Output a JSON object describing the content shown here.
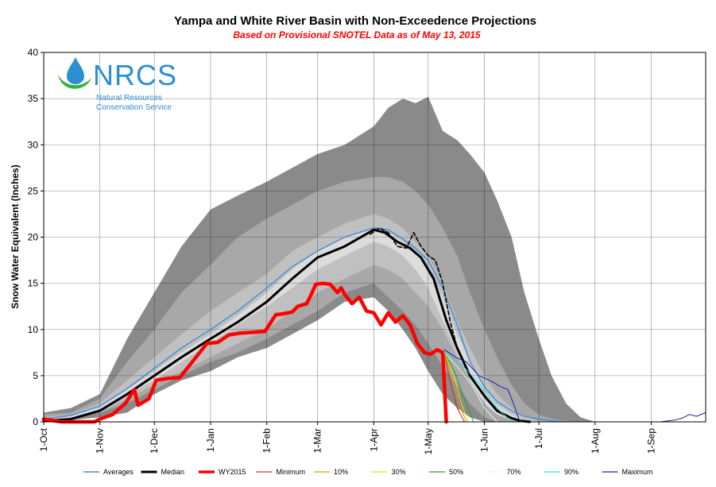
{
  "chart_data": {
    "type": "area",
    "title": "Yampa and White River Basin with Non-Exceedence Projections",
    "subtitle": "Based on Provisional SNOTEL Data as of May 13, 2015",
    "xlabel": "",
    "ylabel": "Snow Water Equivalent (Inches)",
    "ylim": [
      0,
      40
    ],
    "yticks": [
      0,
      5,
      10,
      15,
      20,
      25,
      30,
      35,
      40
    ],
    "xlim_days": [
      0,
      365
    ],
    "xticks": [
      {
        "label": "1-Oct",
        "day": 0
      },
      {
        "label": "1-Nov",
        "day": 31
      },
      {
        "label": "1-Dec",
        "day": 61
      },
      {
        "label": "1-Jan",
        "day": 92
      },
      {
        "label": "1-Feb",
        "day": 123
      },
      {
        "label": "1-Mar",
        "day": 151
      },
      {
        "label": "1-Apr",
        "day": 182
      },
      {
        "label": "1-May",
        "day": 212
      },
      {
        "label": "1-Jun",
        "day": 243
      },
      {
        "label": "1-Jul",
        "day": 273
      },
      {
        "label": "1-Aug",
        "day": 304
      },
      {
        "label": "1-Sep",
        "day": 335
      }
    ],
    "bands": [
      {
        "name": "Min-Max range",
        "color": "#8a8a8a",
        "x": [
          0,
          15,
          31,
          46,
          61,
          76,
          92,
          107,
          123,
          137,
          151,
          166,
          182,
          190,
          198,
          205,
          212,
          220,
          228,
          235,
          243,
          250,
          258,
          265,
          273,
          280,
          288,
          296,
          304,
          365
        ],
        "upper": [
          1,
          1.5,
          3,
          9,
          14,
          19,
          23,
          24.5,
          26,
          27.5,
          29,
          30,
          32,
          34,
          35,
          34.5,
          35.2,
          31.5,
          30.5,
          29,
          27,
          24,
          20,
          14,
          9,
          5,
          2,
          0.5,
          0,
          0
        ],
        "lower": [
          0,
          0.2,
          0.5,
          1,
          3,
          4.5,
          5.5,
          7,
          8,
          9.5,
          11,
          13,
          13.5,
          12,
          10,
          8,
          5.5,
          3,
          1.5,
          0.5,
          0,
          0,
          0,
          0,
          0,
          0,
          0,
          0,
          0,
          0
        ]
      },
      {
        "name": "10%-90% range",
        "color": "#a8a8a8",
        "x": [
          0,
          15,
          31,
          46,
          61,
          76,
          92,
          107,
          123,
          137,
          151,
          166,
          182,
          190,
          198,
          205,
          212,
          220,
          228,
          235,
          243,
          250,
          258,
          265,
          273,
          280,
          288,
          296,
          304
        ],
        "upper": [
          0.8,
          1,
          2.5,
          6.5,
          10,
          14,
          17,
          20,
          22,
          23.5,
          25,
          26,
          26.5,
          26.5,
          26,
          25,
          23.5,
          21,
          18,
          14,
          10,
          7,
          4,
          2,
          0.8,
          0.3,
          0.1,
          0,
          0
        ],
        "lower": [
          0,
          0.3,
          1,
          2,
          3.5,
          5,
          6.5,
          7.5,
          9,
          10.5,
          12,
          14,
          15,
          13.5,
          12,
          10.5,
          8.5,
          6,
          4,
          2,
          0.5,
          0,
          0,
          0,
          0,
          0,
          0,
          0,
          0
        ]
      },
      {
        "name": "30%-70% range",
        "color": "#c0c0c0",
        "x": [
          0,
          15,
          31,
          46,
          61,
          76,
          92,
          107,
          123,
          137,
          151,
          166,
          182,
          190,
          198,
          205,
          212,
          220,
          228,
          235,
          243,
          250,
          258,
          265,
          273,
          280
        ],
        "upper": [
          0.5,
          0.8,
          2,
          4.5,
          7,
          9.5,
          12,
          14,
          16,
          18.5,
          20,
          21.5,
          22.5,
          22,
          21,
          19.5,
          18,
          15,
          11,
          8,
          5,
          3,
          1.5,
          0.6,
          0.1,
          0
        ],
        "lower": [
          0,
          0.3,
          1,
          2.5,
          4,
          5.5,
          7,
          8.5,
          10,
          12,
          14,
          15.5,
          17,
          16.5,
          15.5,
          14,
          12.5,
          10,
          7,
          4.5,
          2,
          0.8,
          0.2,
          0,
          0,
          0
        ]
      },
      {
        "name": "Inner range",
        "color": "#dcdcdc",
        "x": [
          0,
          15,
          31,
          46,
          61,
          76,
          92,
          107,
          123,
          137,
          151,
          166,
          182,
          190,
          198,
          205,
          212,
          220,
          228,
          235,
          243,
          250,
          258,
          265,
          273
        ],
        "upper": [
          0.3,
          0.6,
          1.6,
          3.5,
          5.5,
          7.5,
          9.5,
          11.5,
          14,
          16.5,
          18.5,
          20,
          21,
          20.5,
          19.5,
          18.5,
          16.5,
          13.5,
          9.5,
          6.5,
          3.5,
          1.8,
          0.8,
          0.2,
          0
        ],
        "lower": [
          0.1,
          0.4,
          1.2,
          3,
          4.5,
          6.5,
          8.5,
          10.5,
          12.5,
          14.5,
          16.5,
          18,
          19.5,
          19,
          18,
          16.5,
          14.5,
          11,
          7.5,
          4.5,
          2,
          0.8,
          0.2,
          0,
          0
        ]
      }
    ],
    "series": [
      {
        "name": "Averages",
        "color": "#4a8fd6",
        "width": 1.5,
        "dash": "",
        "x": [
          0,
          15,
          31,
          46,
          61,
          76,
          92,
          107,
          123,
          137,
          151,
          166,
          182,
          190,
          198,
          205,
          212,
          220,
          228,
          235,
          243,
          250,
          258,
          265,
          273,
          280,
          288
        ],
        "y": [
          0.3,
          0.7,
          1.7,
          3.6,
          5.8,
          8,
          10,
          12,
          14.5,
          16.8,
          18.5,
          20,
          21,
          20.8,
          19.8,
          18.8,
          17.5,
          14.5,
          10.5,
          6.5,
          3.8,
          2.2,
          1.2,
          0.6,
          0.3,
          0.1,
          0
        ]
      },
      {
        "name": "Median",
        "color": "#000000",
        "width": 3,
        "dash": "",
        "x": [
          0,
          15,
          31,
          46,
          61,
          76,
          92,
          107,
          123,
          137,
          151,
          166,
          182,
          188,
          195,
          202,
          208,
          215,
          222,
          228,
          235,
          243,
          250,
          258,
          263,
          268
        ],
        "y": [
          0.1,
          0.3,
          1.2,
          3,
          5,
          7,
          9,
          10.8,
          13,
          15.5,
          17.8,
          19,
          20.8,
          20.5,
          19.5,
          18.8,
          17.8,
          15.5,
          11,
          8,
          5,
          2.8,
          1.2,
          0.4,
          0.1,
          0
        ]
      },
      {
        "name": "Current median trace",
        "color": "#000000",
        "width": 1.6,
        "dash": "5,3",
        "legend": false,
        "x": [
          180,
          185,
          190,
          195,
          200,
          204,
          208,
          212,
          216,
          220,
          224,
          228
        ],
        "y": [
          20.3,
          21,
          20.5,
          19,
          18.8,
          20.5,
          19,
          18,
          17.5,
          15,
          11,
          8
        ]
      },
      {
        "name": "WY2015",
        "color": "#ff0000",
        "width": 4.5,
        "dash": "",
        "x": [
          0,
          10,
          20,
          28,
          31,
          38,
          45,
          50,
          52,
          58,
          62,
          68,
          75,
          82,
          90,
          96,
          102,
          108,
          115,
          122,
          128,
          132,
          137,
          140,
          145,
          148,
          150,
          154,
          158,
          162,
          164,
          166,
          170,
          174,
          178,
          182,
          186,
          190,
          194,
          198,
          202,
          206,
          210,
          213,
          217,
          220,
          222
        ],
        "y": [
          0.3,
          0,
          0,
          0,
          0.3,
          0.8,
          2,
          3.5,
          1.8,
          2.5,
          4.5,
          4.7,
          4.8,
          6.5,
          8.5,
          8.6,
          9.4,
          9.6,
          9.7,
          9.8,
          11.6,
          11.7,
          11.9,
          12.5,
          12.8,
          14,
          14.9,
          15,
          14.9,
          14,
          14.5,
          13.8,
          12.8,
          13.5,
          12,
          11.8,
          10.5,
          11.8,
          10.8,
          11.5,
          10.5,
          8.5,
          7.5,
          7.3,
          7.8,
          7.5,
          0
        ]
      },
      {
        "name": "Minimum",
        "color": "#d62728",
        "width": 1,
        "dash": "",
        "x": [
          221,
          224,
          228,
          232
        ],
        "y": [
          7.5,
          4.5,
          1.5,
          0
        ]
      },
      {
        "name": "10%",
        "color": "#e39e00",
        "width": 1,
        "dash": "",
        "x": [
          221,
          225,
          229,
          233
        ],
        "y": [
          7.5,
          4.8,
          2,
          0
        ]
      },
      {
        "name": "30%",
        "color": "#e6e600",
        "width": 1,
        "dash": "",
        "x": [
          221,
          226,
          230,
          234
        ],
        "y": [
          7.5,
          5,
          2.2,
          0
        ]
      },
      {
        "name": "50%",
        "color": "#2ca02c",
        "width": 1,
        "dash": "",
        "x": [
          221,
          227,
          232,
          237
        ],
        "y": [
          7.5,
          5.2,
          2.5,
          0
        ]
      },
      {
        "name": "70%",
        "color": "#e6f5f5",
        "width": 1,
        "dash": "",
        "x": [
          221,
          228,
          236,
          243,
          250
        ],
        "y": [
          7.5,
          6,
          4,
          1.5,
          0
        ]
      },
      {
        "name": "90%",
        "color": "#33d6d6",
        "width": 1,
        "dash": "",
        "x": [
          221,
          230,
          240,
          250,
          258
        ],
        "y": [
          7.5,
          6.3,
          4.2,
          1.5,
          0
        ]
      },
      {
        "name": "Maximum",
        "color": "#2020a0",
        "width": 1,
        "dash": "",
        "x": [
          221,
          227,
          233,
          240,
          247,
          252,
          256,
          259,
          262,
          264
        ],
        "y": [
          7.8,
          7,
          6.5,
          5,
          4.4,
          3.8,
          3.5,
          2,
          0.3,
          0
        ]
      },
      {
        "name": "Maximum tail",
        "color": "#2020a0",
        "width": 1,
        "dash": "",
        "legend": false,
        "x": [
          300,
          340,
          348,
          352,
          356,
          360,
          365
        ],
        "y": [
          0,
          0,
          0.2,
          0.4,
          0.8,
          0.6,
          1
        ]
      }
    ]
  },
  "logo": {
    "text": "NRCS",
    "line1": "Natural Resources",
    "line2": "Conservation Service"
  }
}
